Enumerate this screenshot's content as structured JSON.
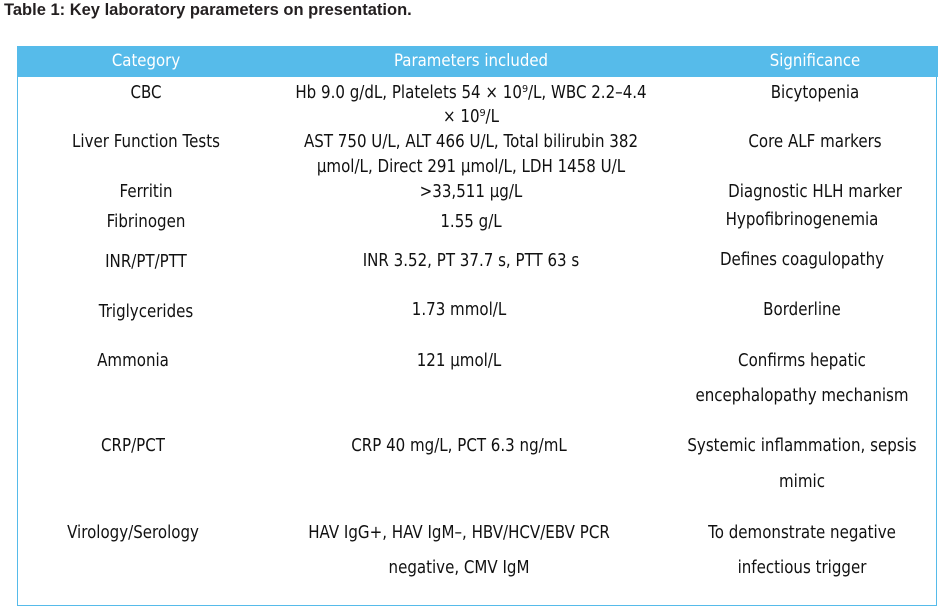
{
  "caption": "Table 1: Key laboratory parameters on presentation.",
  "table": {
    "headers": [
      "Category",
      "Parameters included",
      "Significance"
    ],
    "rows": [
      {
        "category": [
          "CBC"
        ],
        "parameters": [
          "Hb 9.0 g/dL, Platelets 54 × 10⁹/L, WBC 2.2–4.4",
          "× 10⁹/L"
        ],
        "significance": [
          "Bicytopenia"
        ]
      },
      {
        "category": [
          "Liver Function Tests"
        ],
        "parameters": [
          "AST 750 U/L, ALT 466 U/L, Total bilirubin 382",
          "µmol/L, Direct 291 µmol/L, LDH 1458 U/L"
        ],
        "significance": [
          "Core ALF markers"
        ]
      },
      {
        "category": [
          "Ferritin"
        ],
        "parameters": [
          ">33,511 µg/L"
        ],
        "significance": [
          "Diagnostic HLH marker"
        ]
      },
      {
        "category": [
          "Fibrinogen"
        ],
        "parameters": [
          "1.55 g/L"
        ],
        "significance": [
          "Hypofibrinogenemia"
        ]
      },
      {
        "category": [
          "INR/PT/PTT"
        ],
        "parameters": [
          "INR 3.52, PT 37.7 s, PTT 63 s"
        ],
        "significance": [
          "Defines coagulopathy"
        ]
      },
      {
        "category": [
          "Triglycerides"
        ],
        "parameters": [
          "1.73 mmol/L"
        ],
        "significance": [
          "Borderline"
        ]
      },
      {
        "category": [
          "Ammonia"
        ],
        "parameters": [
          "121 µmol/L"
        ],
        "significance": [
          "Confirms hepatic",
          "encephalopathy mechanism"
        ]
      },
      {
        "category": [
          "CRP/PCT"
        ],
        "parameters": [
          "CRP 40 mg/L, PCT 6.3 ng/mL"
        ],
        "significance": [
          "Systemic inflammation, sepsis",
          "mimic"
        ]
      },
      {
        "category": [
          "Virology/Serology"
        ],
        "parameters": [
          "HAV IgG+, HAV IgM–, HBV/HCV/EBV PCR",
          "negative, CMV IgM"
        ],
        "significance": [
          "To demonstrate negative",
          "infectious trigger"
        ]
      }
    ]
  },
  "colors": {
    "header_bg": "#56bbea",
    "border": "#56bbea",
    "header_text": "#ffffff"
  }
}
